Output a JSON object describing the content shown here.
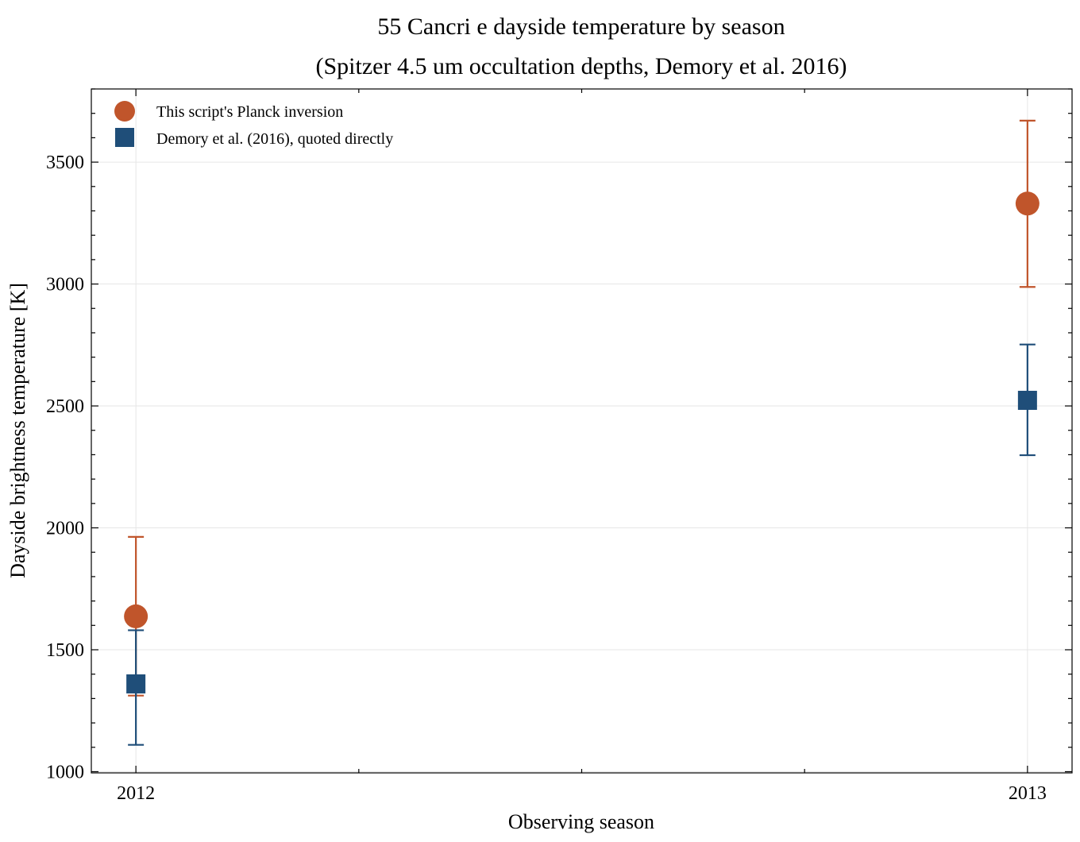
{
  "chart_data": {
    "type": "scatter",
    "title": "55 Cancri e dayside temperature by season",
    "subtitle": "(Spitzer 4.5 um occultation depths, Demory et al. 2016)",
    "xlabel": "Observing season",
    "ylabel": "Dayside brightness temperature [K]",
    "categories": [
      "2012",
      "2013"
    ],
    "xlim": [
      2011.95,
      2013.05
    ],
    "ylim": [
      995,
      3800
    ],
    "yticks": [
      1000,
      1500,
      2000,
      2500,
      3000,
      3500
    ],
    "y_minor_step": 100,
    "grid": true,
    "legend_position": "top-left",
    "series": [
      {
        "name": "This script's Planck inversion",
        "marker": "circle",
        "color": "#c0552b",
        "x": [
          2012,
          2013
        ],
        "y": [
          1637,
          3330
        ],
        "yerr_low": [
          1312,
          2988
        ],
        "yerr_high": [
          1963,
          3670
        ]
      },
      {
        "name": "Demory et al. (2016), quoted directly",
        "marker": "square",
        "color": "#1f4e79",
        "x": [
          2012,
          2013
        ],
        "y": [
          1360,
          2523
        ],
        "yerr_low": [
          1110,
          2298
        ],
        "yerr_high": [
          1580,
          2752
        ]
      }
    ]
  }
}
